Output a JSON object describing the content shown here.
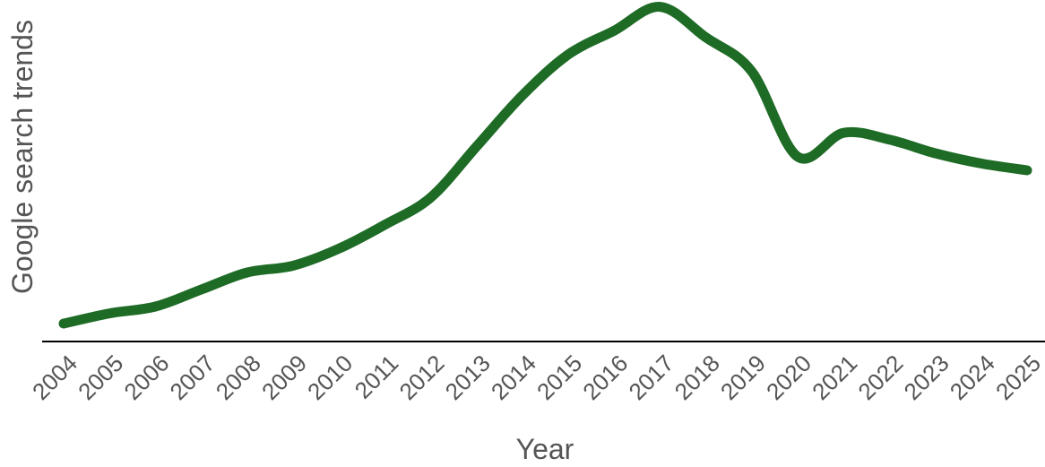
{
  "chart_data": {
    "type": "line",
    "title": "",
    "xlabel": "Year",
    "ylabel": "Google search trends",
    "x": [
      2004,
      2005,
      2006,
      2007,
      2008,
      2009,
      2010,
      2011,
      2012,
      2013,
      2014,
      2015,
      2016,
      2017,
      2018,
      2019,
      2020,
      2021,
      2022,
      2023,
      2024,
      2025
    ],
    "x_tick_labels": [
      "2004",
      "2005",
      "2006",
      "2007",
      "2008",
      "2009",
      "2010",
      "2011",
      "2012",
      "2013",
      "2014",
      "2015",
      "2016",
      "2017",
      "2018",
      "2019",
      "2020",
      "2021",
      "2022",
      "2023",
      "2024",
      "2025"
    ],
    "series": [
      {
        "name": "",
        "color": "#1e6b26",
        "values": [
          5,
          8,
          10,
          15,
          20,
          22,
          27,
          34,
          42,
          57,
          72,
          84,
          91,
          98,
          89,
          79,
          54,
          61,
          59,
          55,
          52,
          50
        ]
      }
    ],
    "ylim": [
      0,
      100
    ],
    "y_ticks_shown": false,
    "grid": false,
    "legend": "none",
    "axis_line_color": "#000000",
    "text_color": "#555555"
  }
}
